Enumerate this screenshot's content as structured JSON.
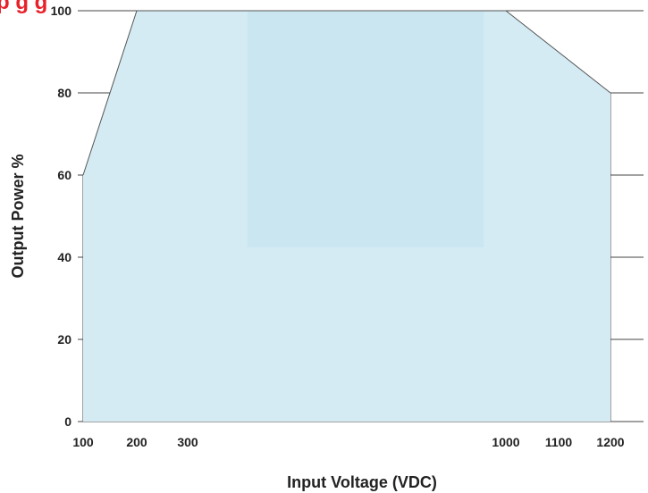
{
  "chart_data": {
    "type": "area",
    "title": "",
    "title_fragment": "p  g    g",
    "title_color": "#e8202a",
    "xlabel": "Input Voltage (VDC)",
    "ylabel": "Output Power %",
    "xlim": [
      100,
      1200
    ],
    "ylim": [
      0,
      100
    ],
    "x_tick_labels": [
      "100",
      "200",
      "300",
      "1000",
      "1100",
      "1200"
    ],
    "y_tick_labels": [
      "0",
      "20",
      "40",
      "60",
      "80",
      "100"
    ],
    "grid": true,
    "legend": "none",
    "series": [
      {
        "x": [
          100,
          200,
          1000,
          1200,
          1200,
          100
        ],
        "y": [
          60,
          100,
          100,
          80,
          0,
          0
        ]
      }
    ],
    "fill_color": "#d4ebf3",
    "highlight_color": "#c9e6f1",
    "line_color": "#555555"
  }
}
